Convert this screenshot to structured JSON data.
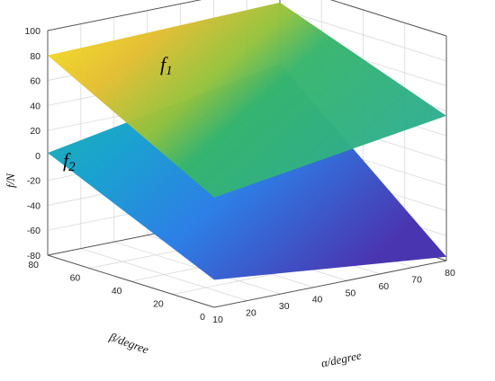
{
  "chart_data": {
    "type": "surface",
    "title": "",
    "zlabel": "f/N",
    "xlabel": "α/degree",
    "ylabel": "β/degree",
    "x_ticks": [
      "10",
      "20",
      "30",
      "40",
      "50",
      "60",
      "70",
      "80"
    ],
    "y_ticks": [
      "0",
      "20",
      "40",
      "60",
      "80"
    ],
    "z_ticks": [
      "100",
      "80",
      "60",
      "40",
      "20",
      "0",
      "-20",
      "-40",
      "-60",
      "-80"
    ],
    "xlim": [
      10,
      80
    ],
    "ylim": [
      0,
      80
    ],
    "zlim": [
      -80,
      100
    ],
    "grid": true,
    "colormap": "parula",
    "series": [
      {
        "name": "f1",
        "name_main": "f",
        "name_sub": "1",
        "corners": {
          "a10_b0": 8,
          "a80_b0": 36,
          "a10_b80": 80,
          "a80_b80": 85
        }
      },
      {
        "name": "f2",
        "name_main": "f",
        "name_sub": "2",
        "corners": {
          "a10_b0": -58,
          "a80_b0": -77,
          "a10_b80": 2,
          "a80_b80": 36
        }
      }
    ]
  }
}
